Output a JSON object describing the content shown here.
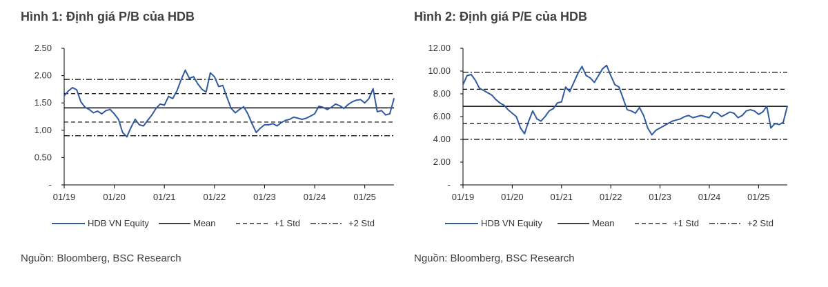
{
  "colors": {
    "series": "#2f5aa0",
    "mean": "#000000",
    "std": "#000000",
    "text": "#404040"
  },
  "legend_labels": [
    "HDB VN Equity",
    "Mean",
    "+1 Std",
    "+2 Std"
  ],
  "chart_data": [
    {
      "type": "line",
      "title": "Hình 1: Định giá P/B của HDB",
      "source": "Nguồn: Bloomberg, BSC Research",
      "x_range": [
        "2019-01",
        "2025-08"
      ],
      "x_ticks": [
        {
          "date": "2019-01",
          "label": "01/19"
        },
        {
          "date": "2020-01",
          "label": "01/20"
        },
        {
          "date": "2021-01",
          "label": "01/21"
        },
        {
          "date": "2022-01",
          "label": "01/22"
        },
        {
          "date": "2023-01",
          "label": "01/23"
        },
        {
          "date": "2024-01",
          "label": "01/24"
        },
        {
          "date": "2025-01",
          "label": "01/25"
        }
      ],
      "ylim": [
        0,
        2.5
      ],
      "y_ticks": [
        {
          "value": 0,
          "label": "-"
        },
        {
          "value": 0.5,
          "label": "0.50"
        },
        {
          "value": 1.0,
          "label": "1.00"
        },
        {
          "value": 1.5,
          "label": "1.50"
        },
        {
          "value": 2.0,
          "label": "2.00"
        },
        {
          "value": 2.5,
          "label": "2.50"
        }
      ],
      "grid": false,
      "legend_position": "bottom",
      "reference_lines": {
        "mean": 1.41,
        "plus_1_std": 1.67,
        "minus_1_std": 1.15,
        "plus_2_std": 1.93,
        "minus_2_std": 0.9
      },
      "series": [
        {
          "name": "HDB VN Equity",
          "points": [
            [
              "2019-01",
              1.63
            ],
            [
              "2019-02",
              1.72
            ],
            [
              "2019-03",
              1.78
            ],
            [
              "2019-04",
              1.74
            ],
            [
              "2019-05",
              1.52
            ],
            [
              "2019-06",
              1.42
            ],
            [
              "2019-07",
              1.38
            ],
            [
              "2019-08",
              1.32
            ],
            [
              "2019-09",
              1.35
            ],
            [
              "2019-10",
              1.3
            ],
            [
              "2019-11",
              1.36
            ],
            [
              "2019-12",
              1.38
            ],
            [
              "2020-01",
              1.3
            ],
            [
              "2020-02",
              1.2
            ],
            [
              "2020-03",
              0.96
            ],
            [
              "2020-04",
              0.88
            ],
            [
              "2020-05",
              1.05
            ],
            [
              "2020-06",
              1.2
            ],
            [
              "2020-07",
              1.1
            ],
            [
              "2020-08",
              1.08
            ],
            [
              "2020-09",
              1.18
            ],
            [
              "2020-10",
              1.28
            ],
            [
              "2020-11",
              1.4
            ],
            [
              "2020-12",
              1.48
            ],
            [
              "2021-01",
              1.46
            ],
            [
              "2021-02",
              1.62
            ],
            [
              "2021-03",
              1.58
            ],
            [
              "2021-04",
              1.72
            ],
            [
              "2021-05",
              1.92
            ],
            [
              "2021-06",
              2.1
            ],
            [
              "2021-07",
              1.95
            ],
            [
              "2021-08",
              1.98
            ],
            [
              "2021-09",
              1.85
            ],
            [
              "2021-10",
              1.75
            ],
            [
              "2021-11",
              1.7
            ],
            [
              "2021-12",
              2.05
            ],
            [
              "2022-01",
              1.98
            ],
            [
              "2022-02",
              1.8
            ],
            [
              "2022-03",
              1.82
            ],
            [
              "2022-04",
              1.6
            ],
            [
              "2022-05",
              1.4
            ],
            [
              "2022-06",
              1.32
            ],
            [
              "2022-07",
              1.38
            ],
            [
              "2022-08",
              1.43
            ],
            [
              "2022-09",
              1.3
            ],
            [
              "2022-10",
              1.12
            ],
            [
              "2022-11",
              0.96
            ],
            [
              "2022-12",
              1.04
            ],
            [
              "2023-01",
              1.1
            ],
            [
              "2023-02",
              1.1
            ],
            [
              "2023-03",
              1.12
            ],
            [
              "2023-04",
              1.08
            ],
            [
              "2023-05",
              1.14
            ],
            [
              "2023-06",
              1.18
            ],
            [
              "2023-07",
              1.2
            ],
            [
              "2023-08",
              1.24
            ],
            [
              "2023-09",
              1.22
            ],
            [
              "2023-10",
              1.2
            ],
            [
              "2023-11",
              1.22
            ],
            [
              "2023-12",
              1.26
            ],
            [
              "2024-01",
              1.3
            ],
            [
              "2024-02",
              1.44
            ],
            [
              "2024-03",
              1.42
            ],
            [
              "2024-04",
              1.38
            ],
            [
              "2024-05",
              1.42
            ],
            [
              "2024-06",
              1.48
            ],
            [
              "2024-07",
              1.45
            ],
            [
              "2024-08",
              1.4
            ],
            [
              "2024-09",
              1.47
            ],
            [
              "2024-10",
              1.52
            ],
            [
              "2024-11",
              1.55
            ],
            [
              "2024-12",
              1.56
            ],
            [
              "2025-01",
              1.5
            ],
            [
              "2025-02",
              1.58
            ],
            [
              "2025-03",
              1.76
            ],
            [
              "2025-04",
              1.34
            ],
            [
              "2025-05",
              1.36
            ],
            [
              "2025-06",
              1.28
            ],
            [
              "2025-07",
              1.3
            ],
            [
              "2025-08",
              1.58
            ]
          ]
        }
      ]
    },
    {
      "type": "line",
      "title": "Hình 2: Định giá P/E của HDB",
      "source": "Nguồn: Bloomberg, BSC Research",
      "x_range": [
        "2019-01",
        "2025-08"
      ],
      "x_ticks": [
        {
          "date": "2019-01",
          "label": "01/19"
        },
        {
          "date": "2020-01",
          "label": "01/20"
        },
        {
          "date": "2021-01",
          "label": "01/21"
        },
        {
          "date": "2022-01",
          "label": "01/22"
        },
        {
          "date": "2023-01",
          "label": "01/23"
        },
        {
          "date": "2024-01",
          "label": "01/24"
        },
        {
          "date": "2025-01",
          "label": "01/25"
        }
      ],
      "ylim": [
        0,
        12
      ],
      "y_ticks": [
        {
          "value": 0,
          "label": "-"
        },
        {
          "value": 2,
          "label": "2.00"
        },
        {
          "value": 4,
          "label": "4.00"
        },
        {
          "value": 6,
          "label": "6.00"
        },
        {
          "value": 8,
          "label": "8.00"
        },
        {
          "value": 10,
          "label": "10.00"
        },
        {
          "value": 12,
          "label": "12.00"
        }
      ],
      "grid": false,
      "legend_position": "bottom",
      "reference_lines": {
        "mean": 6.9,
        "plus_1_std": 8.4,
        "minus_1_std": 5.4,
        "plus_2_std": 9.9,
        "minus_2_std": 4.0
      },
      "series": [
        {
          "name": "HDB VN Equity",
          "points": [
            [
              "2019-01",
              8.8
            ],
            [
              "2019-02",
              9.6
            ],
            [
              "2019-03",
              9.7
            ],
            [
              "2019-04",
              9.2
            ],
            [
              "2019-05",
              8.5
            ],
            [
              "2019-06",
              8.3
            ],
            [
              "2019-07",
              8.1
            ],
            [
              "2019-08",
              7.9
            ],
            [
              "2019-09",
              7.5
            ],
            [
              "2019-10",
              7.2
            ],
            [
              "2019-11",
              7.0
            ],
            [
              "2019-12",
              6.6
            ],
            [
              "2020-01",
              6.3
            ],
            [
              "2020-02",
              6.0
            ],
            [
              "2020-03",
              5.0
            ],
            [
              "2020-04",
              4.5
            ],
            [
              "2020-05",
              5.6
            ],
            [
              "2020-06",
              6.5
            ],
            [
              "2020-07",
              5.8
            ],
            [
              "2020-08",
              5.6
            ],
            [
              "2020-09",
              6.0
            ],
            [
              "2020-10",
              6.5
            ],
            [
              "2020-11",
              6.7
            ],
            [
              "2020-12",
              7.2
            ],
            [
              "2021-01",
              7.3
            ],
            [
              "2021-02",
              8.6
            ],
            [
              "2021-03",
              8.2
            ],
            [
              "2021-04",
              9.0
            ],
            [
              "2021-05",
              9.8
            ],
            [
              "2021-06",
              10.4
            ],
            [
              "2021-07",
              9.6
            ],
            [
              "2021-08",
              9.4
            ],
            [
              "2021-09",
              9.0
            ],
            [
              "2021-10",
              9.6
            ],
            [
              "2021-11",
              10.2
            ],
            [
              "2021-12",
              10.5
            ],
            [
              "2022-01",
              9.6
            ],
            [
              "2022-02",
              8.8
            ],
            [
              "2022-03",
              8.6
            ],
            [
              "2022-04",
              7.6
            ],
            [
              "2022-05",
              6.6
            ],
            [
              "2022-06",
              6.5
            ],
            [
              "2022-07",
              6.3
            ],
            [
              "2022-08",
              6.8
            ],
            [
              "2022-09",
              6.1
            ],
            [
              "2022-10",
              5.0
            ],
            [
              "2022-11",
              4.4
            ],
            [
              "2022-12",
              4.8
            ],
            [
              "2023-01",
              5.0
            ],
            [
              "2023-02",
              5.2
            ],
            [
              "2023-03",
              5.4
            ],
            [
              "2023-04",
              5.6
            ],
            [
              "2023-05",
              5.7
            ],
            [
              "2023-06",
              5.8
            ],
            [
              "2023-07",
              6.0
            ],
            [
              "2023-08",
              6.1
            ],
            [
              "2023-09",
              5.9
            ],
            [
              "2023-10",
              6.0
            ],
            [
              "2023-11",
              6.1
            ],
            [
              "2023-12",
              6.0
            ],
            [
              "2024-01",
              5.9
            ],
            [
              "2024-02",
              6.4
            ],
            [
              "2024-03",
              6.3
            ],
            [
              "2024-04",
              6.0
            ],
            [
              "2024-05",
              6.2
            ],
            [
              "2024-06",
              6.4
            ],
            [
              "2024-07",
              6.3
            ],
            [
              "2024-08",
              5.9
            ],
            [
              "2024-09",
              6.1
            ],
            [
              "2024-10",
              6.5
            ],
            [
              "2024-11",
              6.6
            ],
            [
              "2024-12",
              6.5
            ],
            [
              "2025-01",
              6.2
            ],
            [
              "2025-02",
              6.4
            ],
            [
              "2025-03",
              6.9
            ],
            [
              "2025-04",
              5.0
            ],
            [
              "2025-05",
              5.4
            ],
            [
              "2025-06",
              5.3
            ],
            [
              "2025-07",
              5.5
            ],
            [
              "2025-08",
              6.9
            ]
          ]
        }
      ]
    }
  ]
}
